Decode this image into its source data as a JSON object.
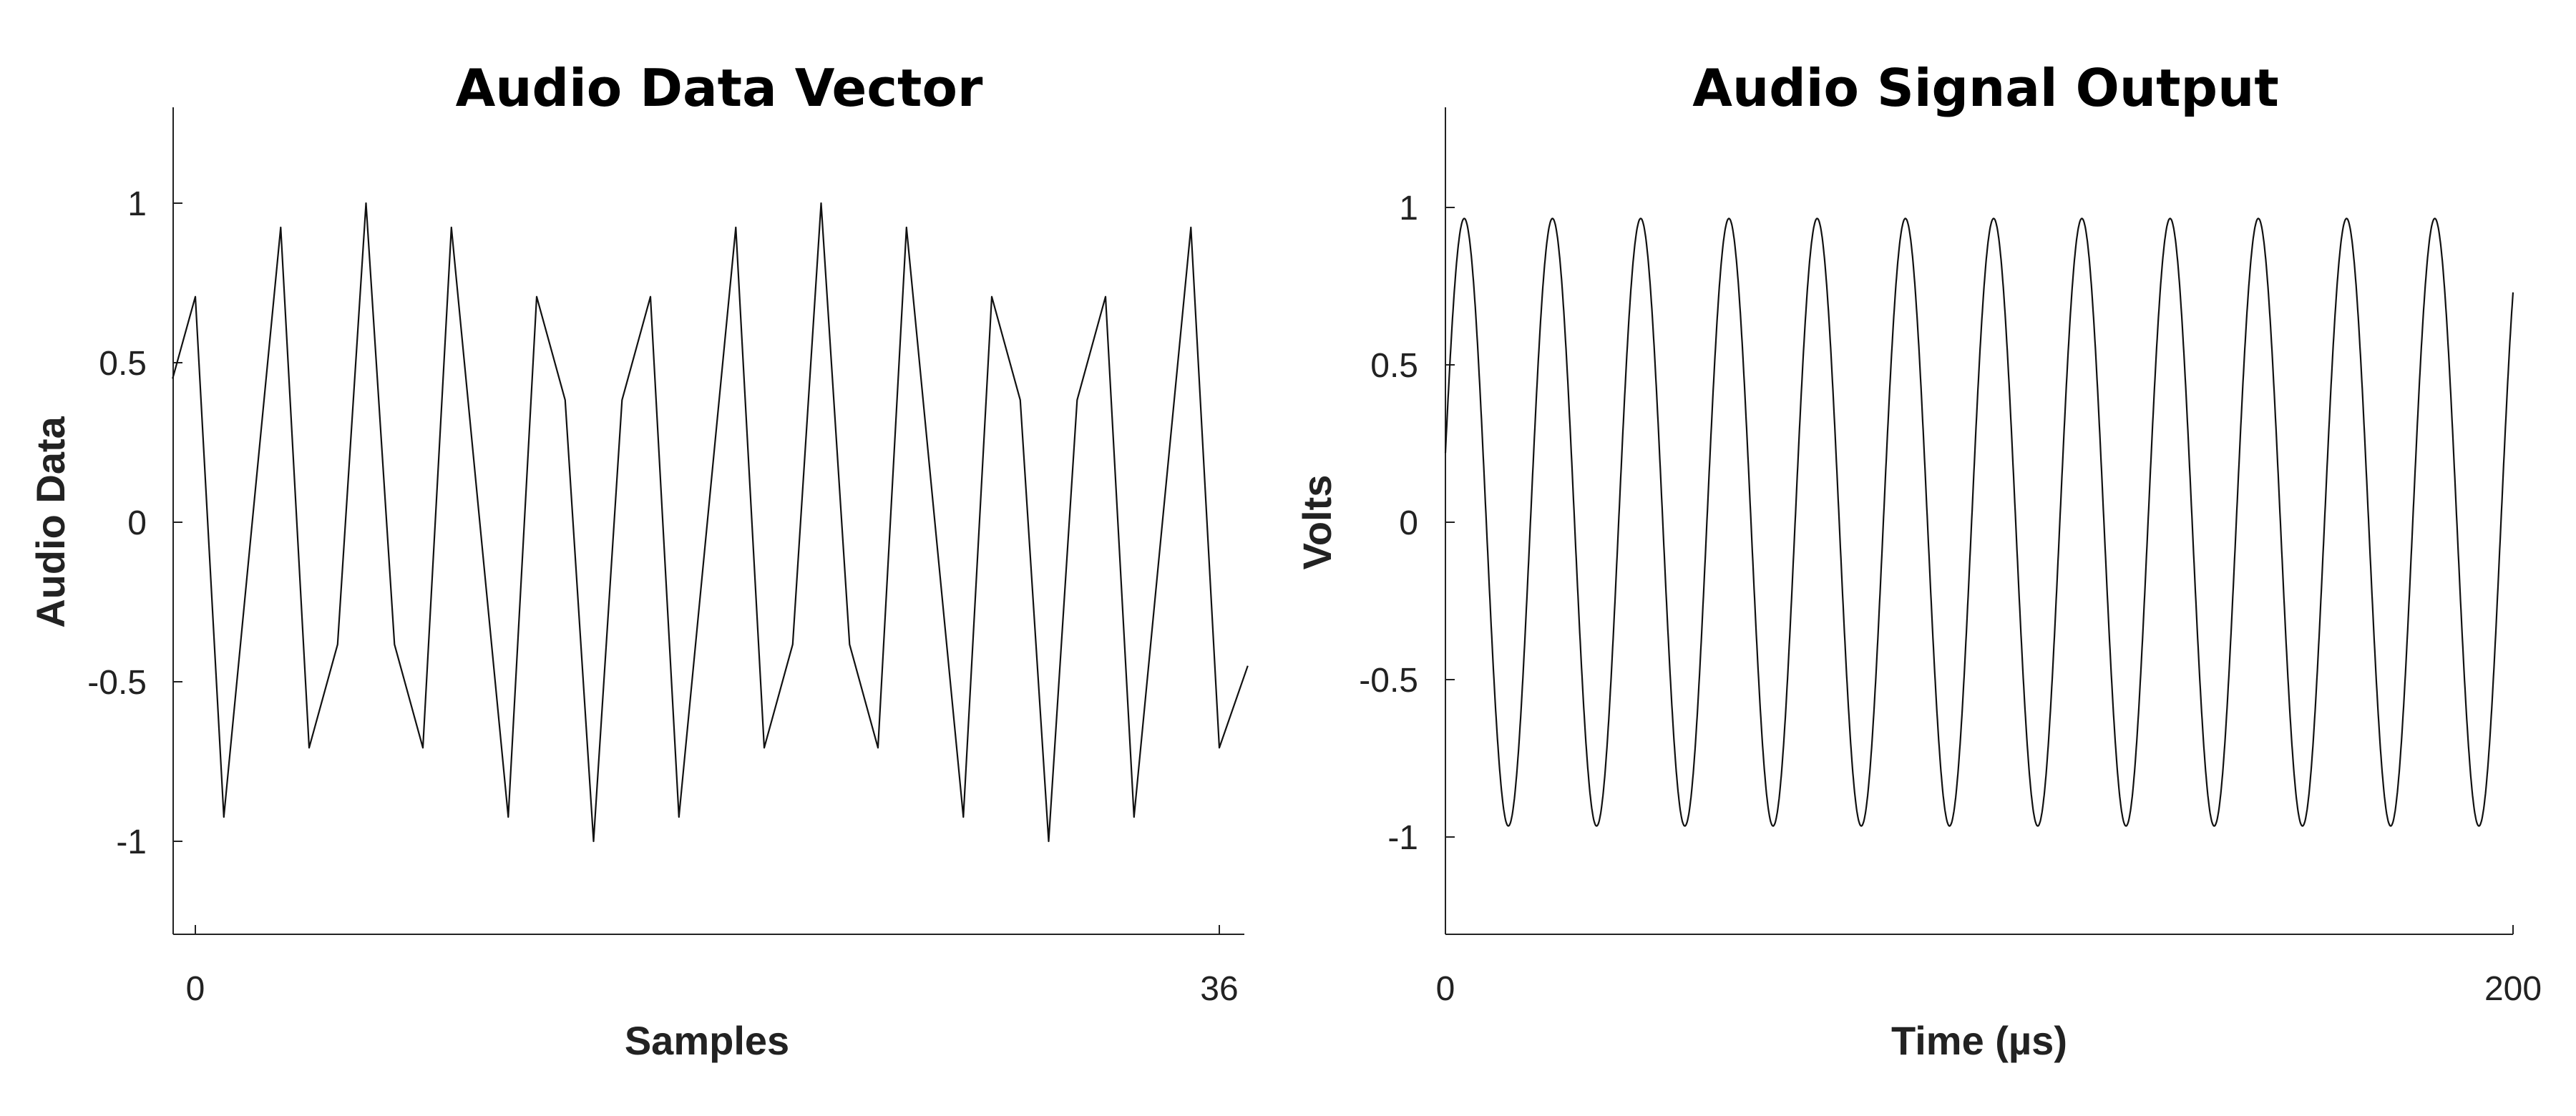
{
  "chart_data": [
    {
      "type": "line",
      "title": "Audio Data Vector",
      "xlabel": "Samples",
      "ylabel": "Audio Data",
      "xlim": [
        -0.8,
        37
      ],
      "ylim": [
        -1.3,
        1.3
      ],
      "xticks": [
        0,
        36
      ],
      "yticks": [
        1,
        0.5,
        0,
        -0.5,
        -1
      ],
      "ytick_labels": [
        "1",
        "0.5",
        "0",
        "-0.5",
        "-1"
      ],
      "series": [
        {
          "x": [
            -0.8,
            0,
            1,
            2,
            3,
            4,
            5,
            6,
            7,
            8,
            9,
            10,
            11,
            12,
            13,
            14,
            15,
            16,
            17,
            18,
            19,
            20,
            21,
            22,
            23,
            24,
            25,
            26,
            27,
            28,
            29,
            30,
            31,
            32,
            33,
            34,
            35,
            36,
            37
          ],
          "values": [
            0.45,
            0.707,
            -0.924,
            0,
            0.924,
            -0.707,
            -0.383,
            1,
            -0.383,
            -0.707,
            0.924,
            0,
            -0.924,
            0.707,
            0.383,
            -1,
            0.383,
            0.707,
            -0.924,
            0,
            0.924,
            -0.707,
            -0.383,
            1,
            -0.383,
            -0.707,
            0.924,
            0,
            -0.924,
            0.707,
            0.383,
            -1,
            0.383,
            0.707,
            -0.924,
            0,
            0.924,
            -0.707,
            -0.45
          ]
        }
      ]
    },
    {
      "type": "line",
      "title": "Audio Signal Output",
      "xlabel": "Time (µs)",
      "ylabel": "Volts",
      "xlim": [
        0,
        200
      ],
      "ylim": [
        -1.3,
        1.3
      ],
      "xticks": [
        0,
        200
      ],
      "yticks": [
        1,
        0.5,
        0,
        -0.5,
        -1
      ],
      "ytick_labels": [
        "1",
        "0.5",
        "0",
        "-0.5",
        "-1"
      ],
      "series": [
        {
          "function": "sine",
          "amplitude": 0.965,
          "cycles": 12.1,
          "start_value": 0.22,
          "x_start": 0,
          "x_end": 200
        }
      ]
    }
  ]
}
